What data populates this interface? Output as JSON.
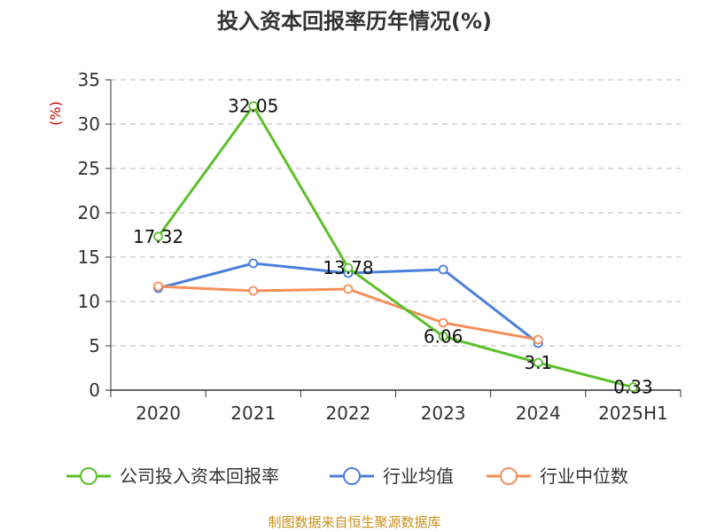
{
  "chart_data": {
    "type": "line",
    "title": "投入资本回报率历年情况(%)",
    "ylabel": "(%)",
    "categories": [
      "2020",
      "2021",
      "2022",
      "2023",
      "2024",
      "2025H1"
    ],
    "ylim": [
      0,
      35
    ],
    "yticks": [
      0,
      5,
      10,
      15,
      20,
      25,
      30,
      35
    ],
    "grid": true,
    "legend_position": "bottom",
    "series": [
      {
        "name": "公司投入资本回报率",
        "color": "#5dbf2a",
        "values": [
          17.32,
          32.05,
          13.78,
          6.06,
          3.1,
          0.33
        ],
        "labels": [
          "17.32",
          "32.05",
          "13.78",
          "6.06",
          "3.1",
          "0.33"
        ]
      },
      {
        "name": "行业均值",
        "color": "#4a7fdb",
        "values": [
          11.5,
          14.3,
          13.2,
          13.6,
          5.3,
          null
        ]
      },
      {
        "name": "行业中位数",
        "color": "#f58f5a",
        "values": [
          11.7,
          11.2,
          11.4,
          7.6,
          5.7,
          null
        ]
      }
    ]
  },
  "source": "制图数据来自恒生聚源数据库"
}
